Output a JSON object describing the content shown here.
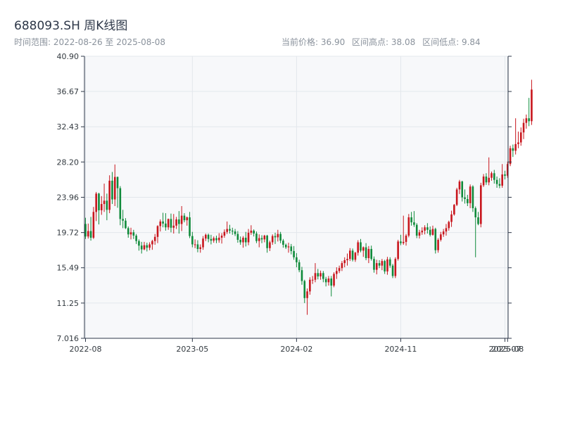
{
  "header": {
    "title": "688093.SH 周K线图",
    "range_label": "时间范围: 2022-08-26 至 2025-08-08",
    "stat_current": "当前价格: 36.90",
    "stat_high": "区间高点: 38.08",
    "stat_low": "区间低点: 9.84"
  },
  "colors": {
    "up": "#c8161d",
    "down": "#0f8a3a",
    "axis": "#2d3748",
    "grid": "#e3e7ec",
    "plot_bg": "#f7f8fa"
  },
  "chart_data": {
    "type": "candlestick",
    "ylim": [
      7.016,
      40.9
    ],
    "y_ticks": [
      "7.016",
      "11.25",
      "15.49",
      "19.72",
      "23.96",
      "28.20",
      "32.43",
      "36.67",
      "40.90"
    ],
    "y_tick_values": [
      7.016,
      11.25,
      15.49,
      19.72,
      23.96,
      28.2,
      32.43,
      36.67,
      40.9
    ],
    "x_ticks": [
      "2022-08",
      "2023-05",
      "2024-02",
      "2024-11",
      "2025-07",
      "2025-08"
    ],
    "x_tick_weeks": [
      0,
      40,
      79,
      118,
      157,
      158
    ],
    "grid": true,
    "candles": [
      [
        20.75,
        21.5,
        18.95,
        19.25
      ],
      [
        19.25,
        20.8,
        19,
        19.9
      ],
      [
        19.9,
        21.6,
        18.75,
        19.1
      ],
      [
        19.1,
        22.8,
        18.95,
        22.2
      ],
      [
        22.2,
        24.6,
        21.1,
        24.4
      ],
      [
        24.4,
        24.5,
        20.7,
        22.4
      ],
      [
        22.4,
        24.1,
        21.85,
        23.15
      ],
      [
        23.15,
        25.6,
        22.2,
        23.55
      ],
      [
        23.55,
        24.4,
        21.2,
        22.45
      ],
      [
        22.45,
        26.6,
        22.05,
        25.95
      ],
      [
        25.95,
        27,
        23.15,
        23.7
      ],
      [
        23.7,
        27.9,
        22.9,
        26.4
      ],
      [
        26.4,
        26.45,
        22.7,
        25.05
      ],
      [
        25.05,
        25.3,
        20.6,
        21.35
      ],
      [
        21.35,
        22.45,
        20.25,
        21.15
      ],
      [
        21.15,
        21.45,
        20.15,
        20.25
      ],
      [
        20.25,
        20.45,
        19.1,
        19.5
      ],
      [
        19.5,
        20.3,
        18.9,
        19.75
      ],
      [
        19.75,
        20.05,
        18.95,
        19.35
      ],
      [
        19.35,
        19.55,
        18.35,
        18.7
      ],
      [
        18.7,
        18.9,
        17.55,
        18.15
      ],
      [
        18.15,
        18.6,
        17.2,
        17.7
      ],
      [
        17.7,
        18.6,
        17.6,
        18.2
      ],
      [
        18.2,
        18.5,
        17.45,
        17.9
      ],
      [
        17.9,
        18.55,
        17.6,
        18.3
      ],
      [
        18.3,
        18.85,
        17.65,
        18.7
      ],
      [
        18.7,
        19.55,
        18.25,
        19.2
      ],
      [
        19.2,
        20.6,
        18.45,
        20.5
      ],
      [
        20.5,
        21.3,
        19.85,
        21.05
      ],
      [
        21.05,
        22.1,
        20.35,
        20.8
      ],
      [
        20.8,
        22.05,
        19.95,
        20.35
      ],
      [
        20.35,
        21.4,
        20.05,
        21.35
      ],
      [
        21.35,
        22,
        19.75,
        20.3
      ],
      [
        20.3,
        21.95,
        19.6,
        20.55
      ],
      [
        20.55,
        21.6,
        20.15,
        21.3
      ],
      [
        21.3,
        22.3,
        19.6,
        20.75
      ],
      [
        20.75,
        22.9,
        19.9,
        21.75
      ],
      [
        21.75,
        22.05,
        20.95,
        21.2
      ],
      [
        21.2,
        21.65,
        20.55,
        21.55
      ],
      [
        21.55,
        22.2,
        19.05,
        19.3
      ],
      [
        19.3,
        19.8,
        17.95,
        18.3
      ],
      [
        18.3,
        18.9,
        17.85,
        18.3
      ],
      [
        18.3,
        18.8,
        17.35,
        17.75
      ],
      [
        17.75,
        18.3,
        17.3,
        17.95
      ],
      [
        17.95,
        19.3,
        17.65,
        19
      ],
      [
        19,
        19.6,
        18.7,
        19.45
      ],
      [
        19.45,
        19.6,
        18.55,
        18.95
      ],
      [
        18.95,
        19.45,
        18.3,
        18.75
      ],
      [
        18.75,
        19.25,
        18.5,
        19.05
      ],
      [
        19.05,
        19.35,
        18.45,
        18.8
      ],
      [
        18.8,
        19.65,
        18.5,
        19.1
      ],
      [
        19.1,
        19.65,
        18.4,
        19.35
      ],
      [
        19.35,
        20.1,
        19.1,
        19.8
      ],
      [
        19.8,
        21.05,
        19.55,
        20.15
      ],
      [
        20.15,
        20.65,
        19.6,
        19.95
      ],
      [
        19.95,
        20.3,
        19.45,
        19.85
      ],
      [
        19.85,
        20.15,
        19.3,
        19.55
      ],
      [
        19.55,
        19.9,
        18.5,
        18.85
      ],
      [
        18.85,
        19.25,
        18.25,
        18.55
      ],
      [
        18.55,
        19.3,
        17.9,
        19.1
      ],
      [
        19.1,
        19.8,
        18.05,
        18.55
      ],
      [
        18.55,
        20.15,
        18.2,
        19.7
      ],
      [
        19.7,
        20.6,
        19.45,
        19.95
      ],
      [
        19.95,
        20.1,
        19.25,
        19.6
      ],
      [
        19.6,
        19.85,
        18.45,
        18.7
      ],
      [
        18.7,
        19.5,
        17.95,
        19.05
      ],
      [
        19.05,
        19.4,
        18.45,
        18.9
      ],
      [
        18.9,
        19.45,
        18.55,
        19.35
      ],
      [
        19.35,
        19.45,
        17.3,
        17.85
      ],
      [
        17.85,
        18.75,
        17.5,
        18.55
      ],
      [
        18.55,
        19.5,
        18.25,
        19.3
      ],
      [
        19.3,
        19.7,
        18.35,
        19.15
      ],
      [
        19.15,
        20.05,
        18.65,
        19.55
      ],
      [
        19.55,
        19.8,
        18.45,
        18.75
      ],
      [
        18.75,
        18.95,
        17.9,
        18.25
      ],
      [
        18.25,
        18.4,
        17.75,
        17.95
      ],
      [
        17.95,
        18.5,
        17.3,
        18.05
      ],
      [
        18.05,
        18.35,
        17.1,
        17.5
      ],
      [
        17.5,
        18.1,
        16.45,
        16.75
      ],
      [
        16.75,
        17.25,
        15.55,
        16.15
      ],
      [
        16.15,
        16.45,
        14.95,
        15.2
      ],
      [
        15.2,
        15.6,
        13.45,
        13.9
      ],
      [
        13.9,
        14.05,
        11.25,
        11.85
      ],
      [
        11.85,
        13,
        9.84,
        12.65
      ],
      [
        12.65,
        14.35,
        12.25,
        14.05
      ],
      [
        14.05,
        14.5,
        13.55,
        14.05
      ],
      [
        14.05,
        16.05,
        13.75,
        14.85
      ],
      [
        14.85,
        15.35,
        14.1,
        14.45
      ],
      [
        14.45,
        15.15,
        14.05,
        14.85
      ],
      [
        14.85,
        15.1,
        13.75,
        14.15
      ],
      [
        14.15,
        14.4,
        13.25,
        13.75
      ],
      [
        13.75,
        14.5,
        13.35,
        14.2
      ],
      [
        14.2,
        14.5,
        12.05,
        13.35
      ],
      [
        13.35,
        14.95,
        13.15,
        14.75
      ],
      [
        14.75,
        15.55,
        14.15,
        15.1
      ],
      [
        15.1,
        15.75,
        14.85,
        15.45
      ],
      [
        15.45,
        16.3,
        15.1,
        16.05
      ],
      [
        16.05,
        16.75,
        15.55,
        16.4
      ],
      [
        16.4,
        17.2,
        15.75,
        16.55
      ],
      [
        16.55,
        17.85,
        16.3,
        17.55
      ],
      [
        17.55,
        17.8,
        16.25,
        16.45
      ],
      [
        16.45,
        17.4,
        16.2,
        17.3
      ],
      [
        17.3,
        18.8,
        16.95,
        18.55
      ],
      [
        18.55,
        18.95,
        17.35,
        17.55
      ],
      [
        17.55,
        18.05,
        16.8,
        17.95
      ],
      [
        17.95,
        18.45,
        16.4,
        16.65
      ],
      [
        16.65,
        18.1,
        16.05,
        17.75
      ],
      [
        17.75,
        18.15,
        16.35,
        16.55
      ],
      [
        16.55,
        16.85,
        14.9,
        15.25
      ],
      [
        15.25,
        16.45,
        14.7,
        16.05
      ],
      [
        16.05,
        16.4,
        15.45,
        15.75
      ],
      [
        15.75,
        16.55,
        15.2,
        16.3
      ],
      [
        16.3,
        16.45,
        14.75,
        15.05
      ],
      [
        15.05,
        16.8,
        14.65,
        16.5
      ],
      [
        16.5,
        16.75,
        15.5,
        15.75
      ],
      [
        15.75,
        15.95,
        14.25,
        14.5
      ],
      [
        14.5,
        16.75,
        14.25,
        16.55
      ],
      [
        16.55,
        18.85,
        16.35,
        18.65
      ],
      [
        18.65,
        19.45,
        18.2,
        18.45
      ],
      [
        18.45,
        21.75,
        18.25,
        18.6
      ],
      [
        18.6,
        19.55,
        18.15,
        19.35
      ],
      [
        19.35,
        21.95,
        19.15,
        21.55
      ],
      [
        21.55,
        22.2,
        20.55,
        20.95
      ],
      [
        20.95,
        22.3,
        20.4,
        20.65
      ],
      [
        20.65,
        20.85,
        19.05,
        19.35
      ],
      [
        19.35,
        20.05,
        19,
        19.75
      ],
      [
        19.75,
        20.35,
        19.45,
        19.95
      ],
      [
        19.95,
        20.6,
        19.5,
        20.35
      ],
      [
        20.35,
        20.85,
        19.6,
        20.05
      ],
      [
        20.05,
        20.45,
        19.25,
        19.45
      ],
      [
        19.45,
        20.55,
        19.35,
        20.15
      ],
      [
        20.15,
        20.3,
        17.2,
        17.6
      ],
      [
        17.6,
        19.05,
        17.3,
        18.85
      ],
      [
        18.85,
        19.8,
        18.65,
        19.5
      ],
      [
        19.5,
        20.15,
        19.2,
        19.85
      ],
      [
        19.85,
        20.75,
        19.35,
        20.25
      ],
      [
        20.25,
        21.15,
        19.95,
        21
      ],
      [
        21,
        22.35,
        20.4,
        21.9
      ],
      [
        21.9,
        23.15,
        21.75,
        23.05
      ],
      [
        23.05,
        25.1,
        22.9,
        24.9
      ],
      [
        24.9,
        26.05,
        24.35,
        25.85
      ],
      [
        25.85,
        25.95,
        23.45,
        23.95
      ],
      [
        23.95,
        24.9,
        23.2,
        23.75
      ],
      [
        23.75,
        24.25,
        22.9,
        23.25
      ],
      [
        23.25,
        25.5,
        22.65,
        25.25
      ],
      [
        25.25,
        25.4,
        22.2,
        22.65
      ],
      [
        22.65,
        22.85,
        16.75,
        21.55
      ],
      [
        21.55,
        22.2,
        20.6,
        20.75
      ],
      [
        20.75,
        25.7,
        20.35,
        25.4
      ],
      [
        25.4,
        26.75,
        25.2,
        26.45
      ],
      [
        26.45,
        26.85,
        25.45,
        25.75
      ],
      [
        25.75,
        28.75,
        25.4,
        26.3
      ],
      [
        26.3,
        27.05,
        25.95,
        26.85
      ],
      [
        26.85,
        27.25,
        25.6,
        26.05
      ],
      [
        26.05,
        26.45,
        25.1,
        25.55
      ],
      [
        25.55,
        26.25,
        25.05,
        25.35
      ],
      [
        25.35,
        27.95,
        25.1,
        26.7
      ],
      [
        26.7,
        27.15,
        26.1,
        26.55
      ],
      [
        26.55,
        28.25,
        26.3,
        27.95
      ],
      [
        27.95,
        30.15,
        27.7,
        29.85
      ],
      [
        29.85,
        30.3,
        28.8,
        29.55
      ],
      [
        29.55,
        33.45,
        29.1,
        30.35
      ],
      [
        30.35,
        31.85,
        29.85,
        30.55
      ],
      [
        30.55,
        32.35,
        30.15,
        31.75
      ],
      [
        31.75,
        33.4,
        30.95,
        32.9
      ],
      [
        32.9,
        33.9,
        32.2,
        33.45
      ],
      [
        33.45,
        35.9,
        32.5,
        33.1
      ],
      [
        33.1,
        38.08,
        32.65,
        36.9
      ]
    ]
  }
}
